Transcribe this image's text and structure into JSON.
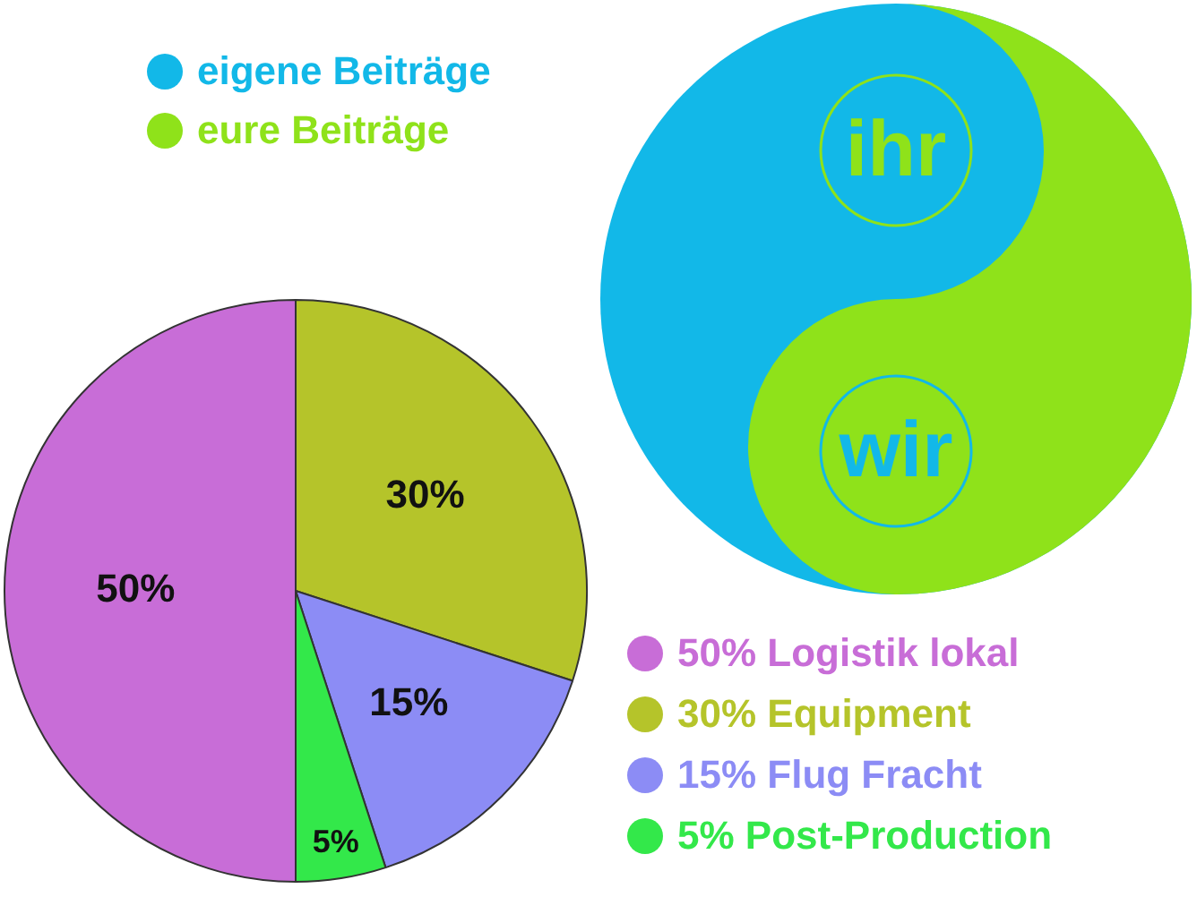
{
  "chart_data": [
    {
      "type": "other",
      "annotations": [
        "eigene Beiträge",
        "eure Beiträge",
        "ihr",
        "wir"
      ]
    },
    {
      "type": "pie",
      "categories": [
        "50% Logistik lokal",
        "30% Equipment",
        "15% Flug Fracht",
        "5% Post-Production"
      ],
      "values": [
        50,
        30,
        15,
        5
      ],
      "colors": [
        "#c86dd7",
        "#b5c42a",
        "#8c8cf5",
        "#33e84a"
      ],
      "value_labels": [
        "50%",
        "30%",
        "15%",
        "5%"
      ],
      "legend": "bottom right"
    }
  ]
}
